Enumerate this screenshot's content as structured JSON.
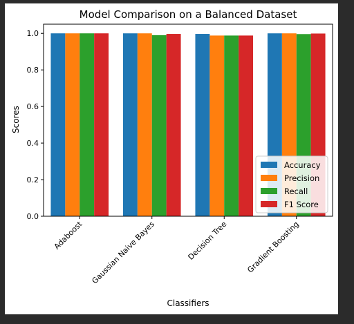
{
  "chart_data": {
    "type": "bar",
    "title": "Model Comparison on a Balanced Dataset",
    "xlabel": "Classifiers",
    "ylabel": "Scores",
    "categories": [
      "Adaboost",
      "Gaussian Naive Bayes",
      "Decision Tree",
      "Gradient Boosting"
    ],
    "series": [
      {
        "name": "Accuracy",
        "color": "#1f77b4",
        "values": [
          1.0,
          1.0,
          0.997,
          1.0
        ]
      },
      {
        "name": "Precision",
        "color": "#ff7f0e",
        "values": [
          1.0,
          1.0,
          0.988,
          1.0
        ]
      },
      {
        "name": "Recall",
        "color": "#2ca02c",
        "values": [
          1.0,
          0.99,
          0.988,
          0.996
        ]
      },
      {
        "name": "F1 Score",
        "color": "#d62728",
        "values": [
          1.0,
          0.997,
          0.988,
          0.999
        ]
      }
    ],
    "ylim": [
      0,
      1.05
    ],
    "yticks": [
      "0.0",
      "0.2",
      "0.4",
      "0.6",
      "0.8",
      "1.0"
    ],
    "grid": false,
    "legend_position": "lower-right"
  }
}
